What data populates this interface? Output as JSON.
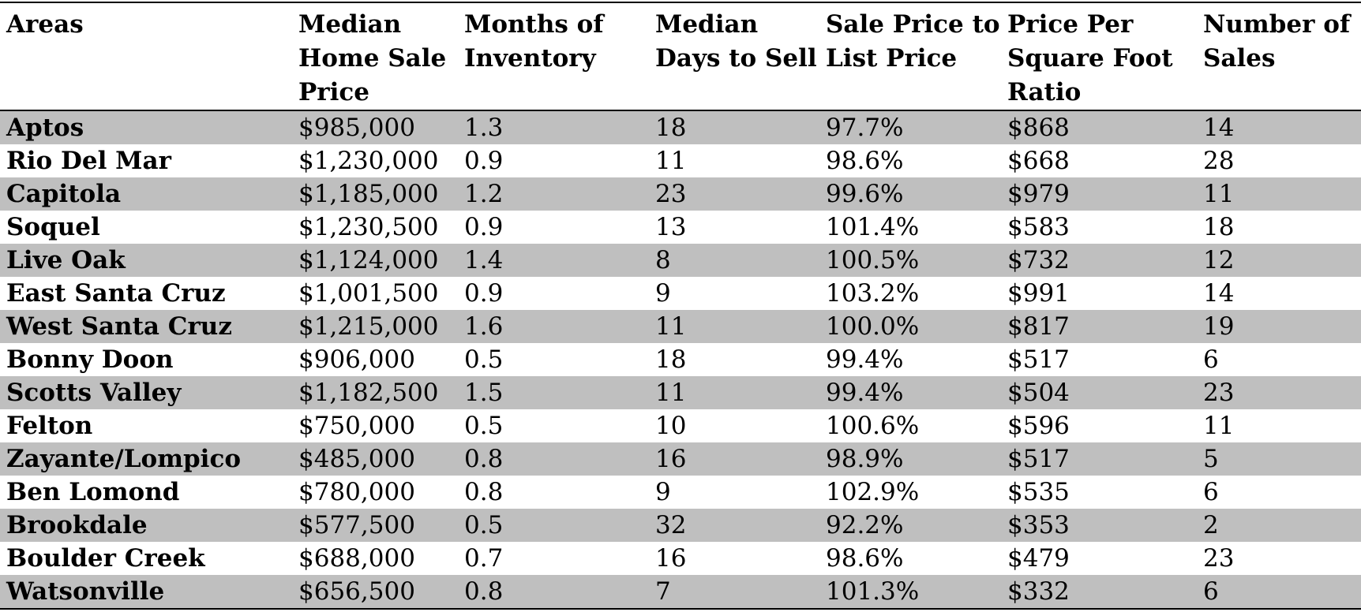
{
  "table": {
    "headers": [
      "Areas",
      "Median Home Sale Price",
      "Months of Inventory",
      "Median Days to Sell",
      "Sale Price to List Price",
      "Price Per Square Foot Ratio",
      "Number of Sales"
    ],
    "rows": [
      [
        "Aptos",
        "$985,000",
        "1.3",
        "18",
        "97.7%",
        "$868",
        "14"
      ],
      [
        "Rio Del Mar",
        "$1,230,000",
        "0.9",
        "11",
        "98.6%",
        "$668",
        "28"
      ],
      [
        "Capitola",
        "$1,185,000",
        "1.2",
        "23",
        "99.6%",
        "$979",
        "11"
      ],
      [
        "Soquel",
        "$1,230,500",
        "0.9",
        "13",
        "101.4%",
        "$583",
        "18"
      ],
      [
        "Live Oak",
        "$1,124,000",
        "1.4",
        "8",
        "100.5%",
        "$732",
        "12"
      ],
      [
        "East Santa Cruz",
        "$1,001,500",
        "0.9",
        "9",
        "103.2%",
        "$991",
        "14"
      ],
      [
        "West Santa Cruz",
        "$1,215,000",
        "1.6",
        "11",
        "100.0%",
        "$817",
        "19"
      ],
      [
        "Bonny Doon",
        "$906,000",
        "0.5",
        "18",
        "99.4%",
        "$517",
        "6"
      ],
      [
        "Scotts Valley",
        "$1,182,500",
        "1.5",
        "11",
        "99.4%",
        "$504",
        "23"
      ],
      [
        "Felton",
        "$750,000",
        "0.5",
        "10",
        "100.6%",
        "$596",
        "11"
      ],
      [
        "Zayante/Lompico",
        "$485,000",
        "0.8",
        "16",
        "98.9%",
        "$517",
        "5"
      ],
      [
        "Ben Lomond",
        "$780,000",
        "0.8",
        "9",
        "102.9%",
        "$535",
        "6"
      ],
      [
        "Brookdale",
        "$577,500",
        "0.5",
        "32",
        "92.2%",
        "$353",
        "2"
      ],
      [
        "Boulder Creek",
        "$688,000",
        "0.7",
        "16",
        "98.6%",
        "$479",
        "23"
      ],
      [
        "Watsonville",
        "$656,500",
        "0.8",
        "7",
        "101.3%",
        "$332",
        "6"
      ]
    ],
    "colors": {
      "shaded_row": "#bfbfbf",
      "plain_row": "#ffffff",
      "text": "#000000"
    }
  }
}
